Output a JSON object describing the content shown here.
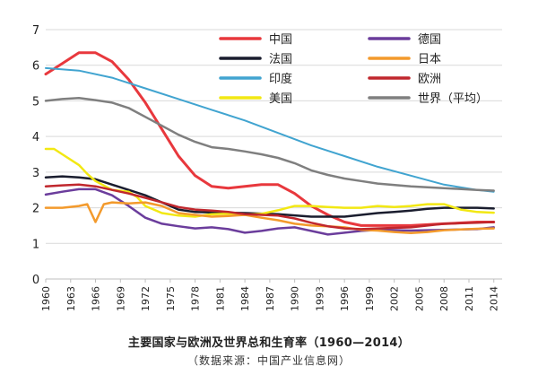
{
  "chart_data": {
    "type": "line",
    "title": "主要国家与欧洲及世界总和生育率（1960—2014）",
    "source_note": "（数据来源：中国产业信息网）",
    "ylim": [
      0,
      7
    ],
    "yticks": [
      "0",
      "1",
      "2",
      "3",
      "4",
      "5",
      "6",
      "7"
    ],
    "x_start": 1960,
    "x_end": 2015,
    "xticks": [
      "1960",
      "1963",
      "1966",
      "1969",
      "1972",
      "1975",
      "1978",
      "1981",
      "1984",
      "1987",
      "1990",
      "1993",
      "1996",
      "1999",
      "2002",
      "2005",
      "2008",
      "2011",
      "2014"
    ],
    "legend_position": "top-right",
    "series": [
      {
        "name": "中国",
        "color": "#e8383d",
        "width": 3,
        "x": [
          1960,
          1962,
          1964,
          1966,
          1968,
          1970,
          1972,
          1974,
          1976,
          1978,
          1980,
          1982,
          1984,
          1986,
          1988,
          1990,
          1992,
          1994,
          1996,
          1998,
          2000,
          2004,
          2008,
          2012,
          2014
        ],
        "y": [
          5.75,
          6.05,
          6.35,
          6.35,
          6.1,
          5.6,
          4.95,
          4.2,
          3.45,
          2.9,
          2.6,
          2.55,
          2.6,
          2.65,
          2.65,
          2.4,
          2.05,
          1.8,
          1.6,
          1.5,
          1.5,
          1.5,
          1.55,
          1.6,
          1.6
        ]
      },
      {
        "name": "法国",
        "color": "#1a1d2e",
        "width": 2.5,
        "x": [
          1960,
          1962,
          1964,
          1966,
          1968,
          1970,
          1972,
          1974,
          1976,
          1978,
          1980,
          1984,
          1988,
          1992,
          1996,
          2000,
          2002,
          2004,
          2006,
          2008,
          2010,
          2012,
          2014
        ],
        "y": [
          2.85,
          2.88,
          2.85,
          2.8,
          2.65,
          2.5,
          2.35,
          2.15,
          1.95,
          1.88,
          1.87,
          1.85,
          1.82,
          1.75,
          1.75,
          1.85,
          1.88,
          1.92,
          1.97,
          2.0,
          2.0,
          2.0,
          1.98
        ]
      },
      {
        "name": "印度",
        "color": "#41a4d0",
        "width": 2,
        "x": [
          1960,
          1964,
          1968,
          1972,
          1976,
          1980,
          1984,
          1988,
          1992,
          1996,
          2000,
          2004,
          2008,
          2012,
          2014
        ],
        "y": [
          5.92,
          5.85,
          5.65,
          5.35,
          5.05,
          4.75,
          4.45,
          4.1,
          3.75,
          3.45,
          3.15,
          2.9,
          2.65,
          2.5,
          2.45
        ]
      },
      {
        "name": "美国",
        "color": "#f2e813",
        "width": 2.5,
        "x": [
          1960,
          1961,
          1962,
          1964,
          1965,
          1966,
          1968,
          1970,
          1971,
          1972,
          1974,
          1976,
          1978,
          1980,
          1982,
          1984,
          1986,
          1988,
          1990,
          1992,
          1994,
          1996,
          1998,
          2000,
          2002,
          2004,
          2006,
          2008,
          2010,
          2012,
          2014
        ],
        "y": [
          3.65,
          3.65,
          3.5,
          3.2,
          2.95,
          2.75,
          2.5,
          2.45,
          2.3,
          2.05,
          1.85,
          1.78,
          1.75,
          1.82,
          1.83,
          1.8,
          1.83,
          1.93,
          2.05,
          2.05,
          2.02,
          2.0,
          2.0,
          2.05,
          2.02,
          2.05,
          2.1,
          2.1,
          1.95,
          1.88,
          1.86
        ]
      },
      {
        "name": "德国",
        "color": "#6b3d9c",
        "width": 2.5,
        "x": [
          1960,
          1962,
          1964,
          1966,
          1968,
          1970,
          1972,
          1974,
          1976,
          1978,
          1980,
          1982,
          1984,
          1986,
          1988,
          1990,
          1992,
          1994,
          1996,
          1998,
          2000,
          2004,
          2008,
          2012,
          2014
        ],
        "y": [
          2.37,
          2.45,
          2.52,
          2.52,
          2.35,
          2.05,
          1.72,
          1.55,
          1.48,
          1.42,
          1.45,
          1.4,
          1.3,
          1.35,
          1.42,
          1.45,
          1.35,
          1.25,
          1.3,
          1.35,
          1.38,
          1.36,
          1.38,
          1.4,
          1.45
        ]
      },
      {
        "name": "日本",
        "color": "#f39a2c",
        "width": 2.5,
        "x": [
          1960,
          1962,
          1964,
          1965,
          1966,
          1967,
          1968,
          1970,
          1972,
          1974,
          1976,
          1978,
          1980,
          1982,
          1984,
          1986,
          1988,
          1990,
          1992,
          1994,
          1996,
          1998,
          2000,
          2002,
          2004,
          2006,
          2008,
          2010,
          2012,
          2014
        ],
        "y": [
          2.0,
          2.0,
          2.05,
          2.1,
          1.6,
          2.1,
          2.15,
          2.12,
          2.15,
          2.05,
          1.85,
          1.8,
          1.75,
          1.77,
          1.8,
          1.72,
          1.65,
          1.55,
          1.5,
          1.48,
          1.45,
          1.38,
          1.36,
          1.32,
          1.29,
          1.32,
          1.37,
          1.39,
          1.41,
          1.42
        ]
      },
      {
        "name": "欧洲",
        "color": "#c0272d",
        "width": 2.5,
        "x": [
          1960,
          1962,
          1964,
          1966,
          1968,
          1970,
          1972,
          1974,
          1976,
          1978,
          1980,
          1982,
          1984,
          1986,
          1988,
          1990,
          1992,
          1994,
          1996,
          1998,
          2000,
          2004,
          2008,
          2012,
          2014
        ],
        "y": [
          2.6,
          2.63,
          2.65,
          2.6,
          2.5,
          2.4,
          2.28,
          2.15,
          2.02,
          1.95,
          1.92,
          1.88,
          1.82,
          1.8,
          1.78,
          1.7,
          1.58,
          1.48,
          1.42,
          1.4,
          1.42,
          1.45,
          1.55,
          1.58,
          1.6
        ]
      },
      {
        "name": "世界（平均）",
        "color": "#7f7f7f",
        "width": 2.5,
        "x": [
          1960,
          1962,
          1964,
          1966,
          1968,
          1970,
          1972,
          1974,
          1976,
          1978,
          1980,
          1982,
          1984,
          1986,
          1988,
          1990,
          1992,
          1994,
          1996,
          1998,
          2000,
          2004,
          2008,
          2012,
          2014
        ],
        "y": [
          5.0,
          5.05,
          5.08,
          5.02,
          4.95,
          4.8,
          4.55,
          4.3,
          4.05,
          3.85,
          3.7,
          3.65,
          3.58,
          3.5,
          3.4,
          3.25,
          3.05,
          2.92,
          2.82,
          2.75,
          2.68,
          2.6,
          2.55,
          2.5,
          2.48
        ]
      }
    ]
  }
}
